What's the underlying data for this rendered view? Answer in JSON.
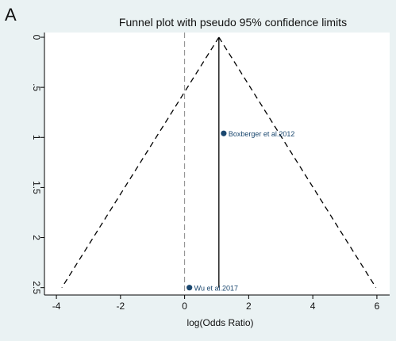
{
  "panel_label": "A",
  "chart_data": {
    "type": "scatter",
    "title": "Funnel plot with pseudo 95% confidence limits",
    "xlabel": "log(Odds Ratio)",
    "ylabel": "",
    "xlim": [
      -4.2,
      6.2
    ],
    "ylim": [
      0,
      2.55
    ],
    "y_inverted": true,
    "x_ticks": [
      -4,
      -2,
      0,
      2,
      4,
      6
    ],
    "y_ticks": [
      0,
      0.5,
      1,
      1.5,
      2,
      2.5
    ],
    "y_tick_labels": [
      "0",
      ".5",
      "1",
      "1.5",
      "2",
      "2.5"
    ],
    "grid": false,
    "legend": "none",
    "pooled_estimate": 1.07,
    "null_line_x": 0,
    "funnel_max_se": 2.5,
    "points": [
      {
        "x": 1.22,
        "y": 0.96,
        "label": "Boxberger et al.2012"
      },
      {
        "x": 0.15,
        "y": 2.5,
        "label": "Wu et al.2017"
      }
    ],
    "colors": {
      "outer_background": "#eaf2f3",
      "plot_background": "#ffffff",
      "point": "#1a476f",
      "point_label": "#1a476f",
      "lines": "#000000",
      "null_line": "#888888"
    }
  }
}
